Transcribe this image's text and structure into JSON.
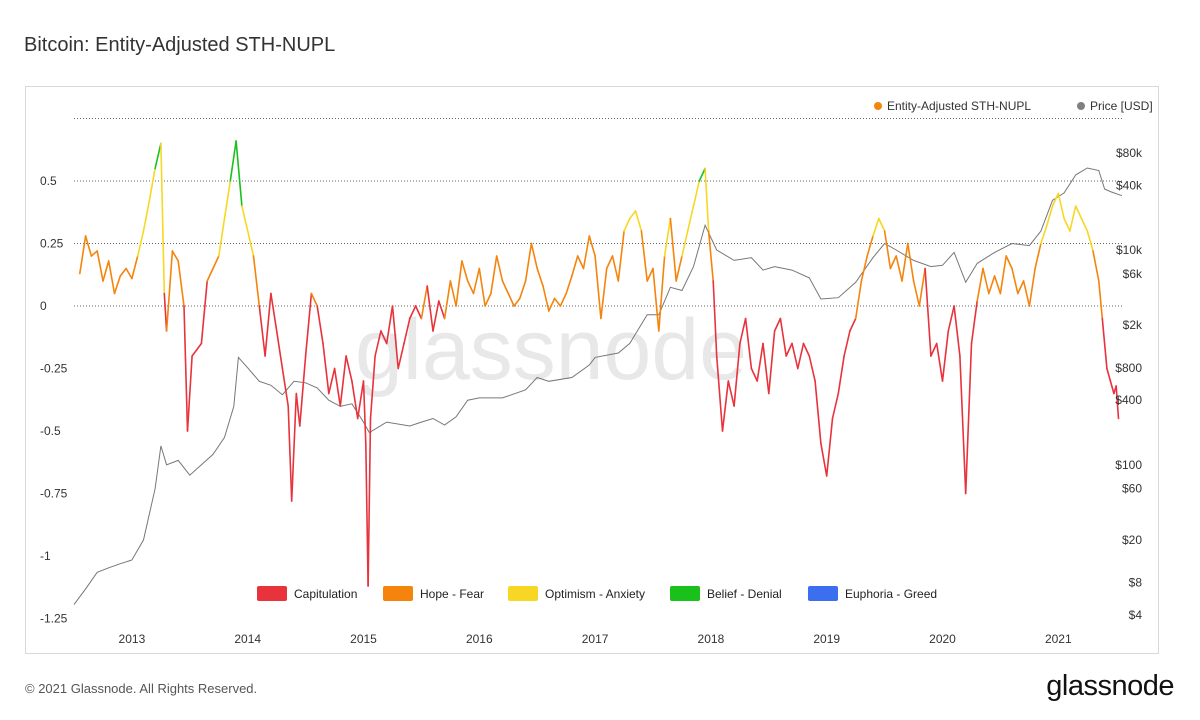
{
  "title": "Bitcoin: Entity-Adjusted STH-NUPL",
  "footer": "© 2021 Glassnode. All Rights Reserved.",
  "brand": "glassnode",
  "watermark": "glassnode",
  "colors": {
    "capitulation": "#e8323c",
    "hope_fear": "#f5840c",
    "optimism_anxiety": "#f7d724",
    "belief_denial": "#1bc11b",
    "euphoria_greed": "#3b6ff0",
    "price": "#777777",
    "grid": "#666666"
  },
  "chart_data": {
    "type": "line",
    "title": "Bitcoin: Entity-Adjusted STH-NUPL",
    "legend_top": [
      {
        "name": "Entity-Adjusted STH-NUPL",
        "color": "#f5840c"
      },
      {
        "name": "Price [USD]",
        "color": "#808080"
      }
    ],
    "legend_bottom": [
      {
        "name": "Capitulation",
        "color": "#e8323c"
      },
      {
        "name": "Hope - Fear",
        "color": "#f5840c"
      },
      {
        "name": "Optimism - Anxiety",
        "color": "#f7d724"
      },
      {
        "name": "Belief - Denial",
        "color": "#1bc11b"
      },
      {
        "name": "Euphoria - Greed",
        "color": "#3b6ff0"
      }
    ],
    "x_ticks": [
      "2013",
      "2014",
      "2015",
      "2016",
      "2017",
      "2018",
      "2019",
      "2020",
      "2021"
    ],
    "x_tick_values": [
      2013,
      2014,
      2015,
      2016,
      2017,
      2018,
      2019,
      2020,
      2021
    ],
    "xlim": [
      2012.5,
      2021.55
    ],
    "y_left_ticks": [
      "0.5",
      "0.25",
      "0",
      "-0.25",
      "-0.5",
      "-0.75",
      "-1",
      "-1.25"
    ],
    "y_left_tick_values": [
      0.5,
      0.25,
      0,
      -0.25,
      -0.5,
      -0.75,
      -1,
      -1.25
    ],
    "y_left_lim": [
      -1.25,
      0.75
    ],
    "y_right_ticks": [
      "$80k",
      "$40k",
      "$10k",
      "$6k",
      "$2k",
      "$800",
      "$400",
      "$100",
      "$60",
      "$20",
      "$8",
      "$4"
    ],
    "y_right_tick_values": [
      80000,
      40000,
      10000,
      6000,
      2000,
      800,
      400,
      100,
      60,
      20,
      8,
      4
    ],
    "y_right_scale": "log",
    "grid": "horizontal dotted",
    "sth_nupl": [
      [
        2012.55,
        0.13
      ],
      [
        2012.6,
        0.28
      ],
      [
        2012.65,
        0.2
      ],
      [
        2012.7,
        0.22
      ],
      [
        2012.75,
        0.1
      ],
      [
        2012.8,
        0.18
      ],
      [
        2012.85,
        0.05
      ],
      [
        2012.9,
        0.12
      ],
      [
        2012.95,
        0.15
      ],
      [
        2013.0,
        0.11
      ],
      [
        2013.05,
        0.2
      ],
      [
        2013.1,
        0.3
      ],
      [
        2013.15,
        0.42
      ],
      [
        2013.2,
        0.55
      ],
      [
        2013.25,
        0.65
      ],
      [
        2013.28,
        0.05
      ],
      [
        2013.3,
        -0.1
      ],
      [
        2013.35,
        0.22
      ],
      [
        2013.4,
        0.18
      ],
      [
        2013.45,
        0.0
      ],
      [
        2013.48,
        -0.5
      ],
      [
        2013.52,
        -0.2
      ],
      [
        2013.6,
        -0.15
      ],
      [
        2013.65,
        0.1
      ],
      [
        2013.7,
        0.15
      ],
      [
        2013.75,
        0.2
      ],
      [
        2013.8,
        0.35
      ],
      [
        2013.85,
        0.5
      ],
      [
        2013.9,
        0.66
      ],
      [
        2013.95,
        0.4
      ],
      [
        2014.0,
        0.3
      ],
      [
        2014.05,
        0.2
      ],
      [
        2014.1,
        0.0
      ],
      [
        2014.15,
        -0.2
      ],
      [
        2014.2,
        0.05
      ],
      [
        2014.25,
        -0.1
      ],
      [
        2014.3,
        -0.25
      ],
      [
        2014.35,
        -0.4
      ],
      [
        2014.38,
        -0.78
      ],
      [
        2014.42,
        -0.35
      ],
      [
        2014.45,
        -0.48
      ],
      [
        2014.5,
        -0.2
      ],
      [
        2014.55,
        0.05
      ],
      [
        2014.6,
        0.0
      ],
      [
        2014.65,
        -0.15
      ],
      [
        2014.7,
        -0.35
      ],
      [
        2014.75,
        -0.25
      ],
      [
        2014.8,
        -0.4
      ],
      [
        2014.85,
        -0.2
      ],
      [
        2014.9,
        -0.3
      ],
      [
        2014.95,
        -0.45
      ],
      [
        2015.0,
        -0.3
      ],
      [
        2015.02,
        -0.55
      ],
      [
        2015.04,
        -1.12
      ],
      [
        2015.06,
        -0.45
      ],
      [
        2015.1,
        -0.2
      ],
      [
        2015.15,
        -0.1
      ],
      [
        2015.2,
        -0.15
      ],
      [
        2015.25,
        0.0
      ],
      [
        2015.3,
        -0.25
      ],
      [
        2015.35,
        -0.15
      ],
      [
        2015.4,
        -0.05
      ],
      [
        2015.45,
        0.0
      ],
      [
        2015.5,
        -0.05
      ],
      [
        2015.55,
        0.08
      ],
      [
        2015.6,
        -0.1
      ],
      [
        2015.65,
        0.02
      ],
      [
        2015.7,
        -0.05
      ],
      [
        2015.75,
        0.1
      ],
      [
        2015.8,
        0.0
      ],
      [
        2015.85,
        0.18
      ],
      [
        2015.9,
        0.1
      ],
      [
        2015.95,
        0.05
      ],
      [
        2016.0,
        0.15
      ],
      [
        2016.05,
        0.0
      ],
      [
        2016.1,
        0.05
      ],
      [
        2016.15,
        0.2
      ],
      [
        2016.2,
        0.1
      ],
      [
        2016.25,
        0.05
      ],
      [
        2016.3,
        0.0
      ],
      [
        2016.35,
        0.03
      ],
      [
        2016.4,
        0.1
      ],
      [
        2016.45,
        0.25
      ],
      [
        2016.5,
        0.15
      ],
      [
        2016.55,
        0.08
      ],
      [
        2016.6,
        -0.02
      ],
      [
        2016.65,
        0.03
      ],
      [
        2016.7,
        0.0
      ],
      [
        2016.75,
        0.05
      ],
      [
        2016.8,
        0.12
      ],
      [
        2016.85,
        0.2
      ],
      [
        2016.9,
        0.15
      ],
      [
        2016.95,
        0.28
      ],
      [
        2017.0,
        0.2
      ],
      [
        2017.05,
        -0.05
      ],
      [
        2017.1,
        0.15
      ],
      [
        2017.15,
        0.2
      ],
      [
        2017.2,
        0.1
      ],
      [
        2017.25,
        0.3
      ],
      [
        2017.3,
        0.35
      ],
      [
        2017.35,
        0.38
      ],
      [
        2017.4,
        0.3
      ],
      [
        2017.45,
        0.1
      ],
      [
        2017.5,
        0.15
      ],
      [
        2017.55,
        -0.1
      ],
      [
        2017.6,
        0.2
      ],
      [
        2017.65,
        0.35
      ],
      [
        2017.7,
        0.1
      ],
      [
        2017.75,
        0.2
      ],
      [
        2017.8,
        0.3
      ],
      [
        2017.85,
        0.4
      ],
      [
        2017.9,
        0.5
      ],
      [
        2017.95,
        0.55
      ],
      [
        2017.98,
        0.3
      ],
      [
        2018.02,
        0.1
      ],
      [
        2018.05,
        -0.2
      ],
      [
        2018.1,
        -0.5
      ],
      [
        2018.15,
        -0.3
      ],
      [
        2018.2,
        -0.4
      ],
      [
        2018.25,
        -0.15
      ],
      [
        2018.3,
        -0.05
      ],
      [
        2018.35,
        -0.25
      ],
      [
        2018.4,
        -0.3
      ],
      [
        2018.45,
        -0.15
      ],
      [
        2018.5,
        -0.35
      ],
      [
        2018.55,
        -0.1
      ],
      [
        2018.6,
        -0.05
      ],
      [
        2018.65,
        -0.2
      ],
      [
        2018.7,
        -0.15
      ],
      [
        2018.75,
        -0.25
      ],
      [
        2018.8,
        -0.15
      ],
      [
        2018.85,
        -0.2
      ],
      [
        2018.9,
        -0.3
      ],
      [
        2018.95,
        -0.55
      ],
      [
        2019.0,
        -0.68
      ],
      [
        2019.05,
        -0.45
      ],
      [
        2019.1,
        -0.35
      ],
      [
        2019.15,
        -0.2
      ],
      [
        2019.2,
        -0.1
      ],
      [
        2019.25,
        -0.05
      ],
      [
        2019.3,
        0.1
      ],
      [
        2019.35,
        0.2
      ],
      [
        2019.4,
        0.28
      ],
      [
        2019.45,
        0.35
      ],
      [
        2019.5,
        0.3
      ],
      [
        2019.55,
        0.15
      ],
      [
        2019.6,
        0.2
      ],
      [
        2019.65,
        0.1
      ],
      [
        2019.7,
        0.25
      ],
      [
        2019.75,
        0.1
      ],
      [
        2019.8,
        0.0
      ],
      [
        2019.85,
        0.15
      ],
      [
        2019.9,
        -0.2
      ],
      [
        2019.95,
        -0.15
      ],
      [
        2020.0,
        -0.3
      ],
      [
        2020.05,
        -0.1
      ],
      [
        2020.1,
        0.0
      ],
      [
        2020.15,
        -0.2
      ],
      [
        2020.2,
        -0.75
      ],
      [
        2020.25,
        -0.15
      ],
      [
        2020.3,
        0.02
      ],
      [
        2020.35,
        0.15
      ],
      [
        2020.4,
        0.05
      ],
      [
        2020.45,
        0.12
      ],
      [
        2020.5,
        0.05
      ],
      [
        2020.55,
        0.2
      ],
      [
        2020.6,
        0.15
      ],
      [
        2020.65,
        0.05
      ],
      [
        2020.7,
        0.1
      ],
      [
        2020.75,
        0.0
      ],
      [
        2020.8,
        0.15
      ],
      [
        2020.85,
        0.25
      ],
      [
        2020.9,
        0.32
      ],
      [
        2020.95,
        0.4
      ],
      [
        2021.0,
        0.45
      ],
      [
        2021.05,
        0.35
      ],
      [
        2021.1,
        0.3
      ],
      [
        2021.15,
        0.4
      ],
      [
        2021.2,
        0.35
      ],
      [
        2021.25,
        0.3
      ],
      [
        2021.3,
        0.22
      ],
      [
        2021.35,
        0.1
      ],
      [
        2021.38,
        -0.05
      ],
      [
        2021.42,
        -0.25
      ],
      [
        2021.45,
        -0.3
      ],
      [
        2021.48,
        -0.35
      ],
      [
        2021.5,
        -0.32
      ],
      [
        2021.52,
        -0.45
      ]
    ],
    "price_usd": [
      [
        2012.5,
        5
      ],
      [
        2012.6,
        7
      ],
      [
        2012.7,
        10
      ],
      [
        2012.8,
        11
      ],
      [
        2012.9,
        12
      ],
      [
        2013.0,
        13
      ],
      [
        2013.1,
        20
      ],
      [
        2013.2,
        60
      ],
      [
        2013.25,
        150
      ],
      [
        2013.3,
        100
      ],
      [
        2013.4,
        110
      ],
      [
        2013.5,
        80
      ],
      [
        2013.6,
        100
      ],
      [
        2013.7,
        125
      ],
      [
        2013.8,
        180
      ],
      [
        2013.88,
        350
      ],
      [
        2013.92,
        1000
      ],
      [
        2014.0,
        800
      ],
      [
        2014.1,
        600
      ],
      [
        2014.2,
        550
      ],
      [
        2014.3,
        450
      ],
      [
        2014.4,
        600
      ],
      [
        2014.5,
        580
      ],
      [
        2014.6,
        520
      ],
      [
        2014.7,
        400
      ],
      [
        2014.8,
        350
      ],
      [
        2014.9,
        370
      ],
      [
        2015.0,
        250
      ],
      [
        2015.05,
        200
      ],
      [
        2015.2,
        250
      ],
      [
        2015.4,
        230
      ],
      [
        2015.5,
        250
      ],
      [
        2015.6,
        270
      ],
      [
        2015.7,
        235
      ],
      [
        2015.8,
        280
      ],
      [
        2015.9,
        400
      ],
      [
        2016.0,
        420
      ],
      [
        2016.2,
        420
      ],
      [
        2016.4,
        500
      ],
      [
        2016.5,
        650
      ],
      [
        2016.6,
        600
      ],
      [
        2016.8,
        650
      ],
      [
        2016.95,
        850
      ],
      [
        2017.0,
        1000
      ],
      [
        2017.2,
        1100
      ],
      [
        2017.3,
        1350
      ],
      [
        2017.45,
        2500
      ],
      [
        2017.55,
        2500
      ],
      [
        2017.65,
        4500
      ],
      [
        2017.75,
        4200
      ],
      [
        2017.85,
        7000
      ],
      [
        2017.95,
        17000
      ],
      [
        2018.05,
        10000
      ],
      [
        2018.2,
        8000
      ],
      [
        2018.35,
        8500
      ],
      [
        2018.45,
        6500
      ],
      [
        2018.55,
        7000
      ],
      [
        2018.7,
        6500
      ],
      [
        2018.85,
        5500
      ],
      [
        2018.95,
        3500
      ],
      [
        2019.1,
        3600
      ],
      [
        2019.25,
        5000
      ],
      [
        2019.4,
        8500
      ],
      [
        2019.5,
        11500
      ],
      [
        2019.6,
        10000
      ],
      [
        2019.75,
        8000
      ],
      [
        2019.9,
        7000
      ],
      [
        2020.0,
        7200
      ],
      [
        2020.1,
        9500
      ],
      [
        2020.2,
        5000
      ],
      [
        2020.3,
        7500
      ],
      [
        2020.45,
        9500
      ],
      [
        2020.6,
        11500
      ],
      [
        2020.75,
        11000
      ],
      [
        2020.85,
        15000
      ],
      [
        2020.95,
        29000
      ],
      [
        2021.05,
        34000
      ],
      [
        2021.15,
        50000
      ],
      [
        2021.25,
        58000
      ],
      [
        2021.35,
        55000
      ],
      [
        2021.4,
        37000
      ],
      [
        2021.45,
        35000
      ],
      [
        2021.55,
        32000
      ]
    ]
  }
}
